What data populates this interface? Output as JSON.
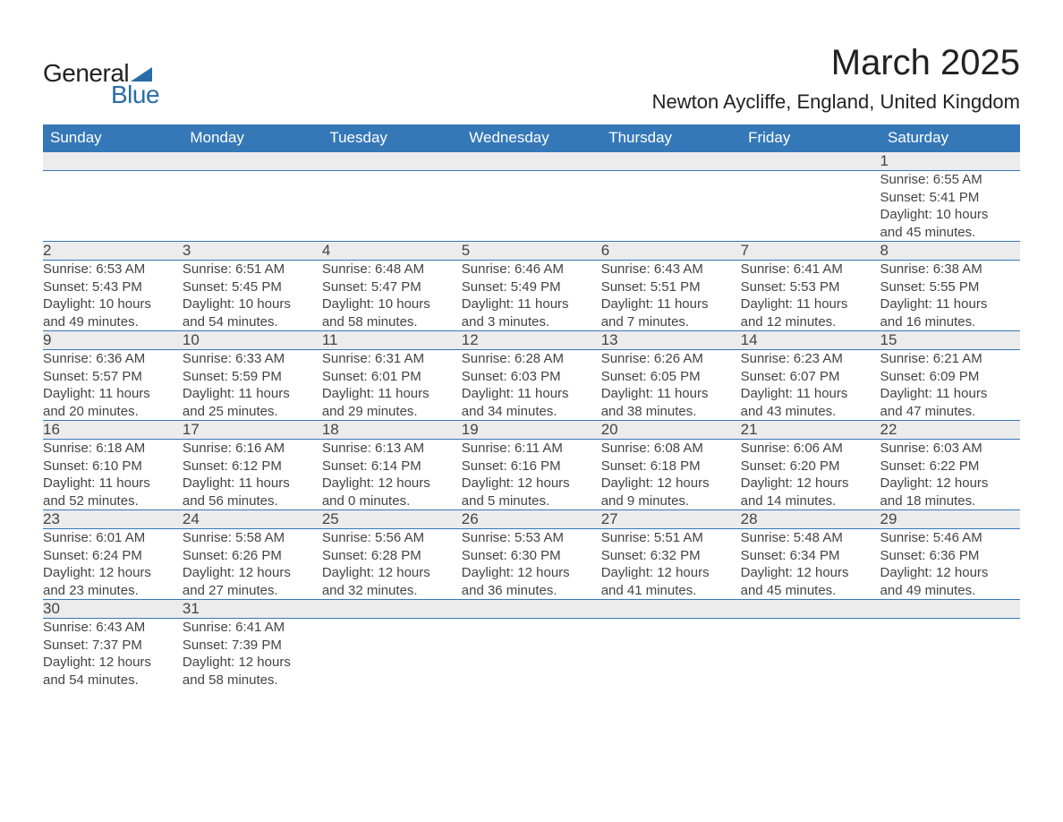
{
  "brand": {
    "part1": "General",
    "part2": "Blue"
  },
  "title": "March 2025",
  "location": "Newton Aycliffe, England, United Kingdom",
  "colors": {
    "header_bg": "#3578b8",
    "header_text": "#ffffff",
    "daynum_bg": "#ececec",
    "border": "#3578b8",
    "text": "#444444",
    "brand_blue": "#2a6ca8"
  },
  "day_headers": [
    "Sunday",
    "Monday",
    "Tuesday",
    "Wednesday",
    "Thursday",
    "Friday",
    "Saturday"
  ],
  "weeks": [
    [
      null,
      null,
      null,
      null,
      null,
      null,
      {
        "n": "1",
        "sr": "Sunrise: 6:55 AM",
        "ss": "Sunset: 5:41 PM",
        "d1": "Daylight: 10 hours",
        "d2": "and 45 minutes."
      }
    ],
    [
      {
        "n": "2",
        "sr": "Sunrise: 6:53 AM",
        "ss": "Sunset: 5:43 PM",
        "d1": "Daylight: 10 hours",
        "d2": "and 49 minutes."
      },
      {
        "n": "3",
        "sr": "Sunrise: 6:51 AM",
        "ss": "Sunset: 5:45 PM",
        "d1": "Daylight: 10 hours",
        "d2": "and 54 minutes."
      },
      {
        "n": "4",
        "sr": "Sunrise: 6:48 AM",
        "ss": "Sunset: 5:47 PM",
        "d1": "Daylight: 10 hours",
        "d2": "and 58 minutes."
      },
      {
        "n": "5",
        "sr": "Sunrise: 6:46 AM",
        "ss": "Sunset: 5:49 PM",
        "d1": "Daylight: 11 hours",
        "d2": "and 3 minutes."
      },
      {
        "n": "6",
        "sr": "Sunrise: 6:43 AM",
        "ss": "Sunset: 5:51 PM",
        "d1": "Daylight: 11 hours",
        "d2": "and 7 minutes."
      },
      {
        "n": "7",
        "sr": "Sunrise: 6:41 AM",
        "ss": "Sunset: 5:53 PM",
        "d1": "Daylight: 11 hours",
        "d2": "and 12 minutes."
      },
      {
        "n": "8",
        "sr": "Sunrise: 6:38 AM",
        "ss": "Sunset: 5:55 PM",
        "d1": "Daylight: 11 hours",
        "d2": "and 16 minutes."
      }
    ],
    [
      {
        "n": "9",
        "sr": "Sunrise: 6:36 AM",
        "ss": "Sunset: 5:57 PM",
        "d1": "Daylight: 11 hours",
        "d2": "and 20 minutes."
      },
      {
        "n": "10",
        "sr": "Sunrise: 6:33 AM",
        "ss": "Sunset: 5:59 PM",
        "d1": "Daylight: 11 hours",
        "d2": "and 25 minutes."
      },
      {
        "n": "11",
        "sr": "Sunrise: 6:31 AM",
        "ss": "Sunset: 6:01 PM",
        "d1": "Daylight: 11 hours",
        "d2": "and 29 minutes."
      },
      {
        "n": "12",
        "sr": "Sunrise: 6:28 AM",
        "ss": "Sunset: 6:03 PM",
        "d1": "Daylight: 11 hours",
        "d2": "and 34 minutes."
      },
      {
        "n": "13",
        "sr": "Sunrise: 6:26 AM",
        "ss": "Sunset: 6:05 PM",
        "d1": "Daylight: 11 hours",
        "d2": "and 38 minutes."
      },
      {
        "n": "14",
        "sr": "Sunrise: 6:23 AM",
        "ss": "Sunset: 6:07 PM",
        "d1": "Daylight: 11 hours",
        "d2": "and 43 minutes."
      },
      {
        "n": "15",
        "sr": "Sunrise: 6:21 AM",
        "ss": "Sunset: 6:09 PM",
        "d1": "Daylight: 11 hours",
        "d2": "and 47 minutes."
      }
    ],
    [
      {
        "n": "16",
        "sr": "Sunrise: 6:18 AM",
        "ss": "Sunset: 6:10 PM",
        "d1": "Daylight: 11 hours",
        "d2": "and 52 minutes."
      },
      {
        "n": "17",
        "sr": "Sunrise: 6:16 AM",
        "ss": "Sunset: 6:12 PM",
        "d1": "Daylight: 11 hours",
        "d2": "and 56 minutes."
      },
      {
        "n": "18",
        "sr": "Sunrise: 6:13 AM",
        "ss": "Sunset: 6:14 PM",
        "d1": "Daylight: 12 hours",
        "d2": "and 0 minutes."
      },
      {
        "n": "19",
        "sr": "Sunrise: 6:11 AM",
        "ss": "Sunset: 6:16 PM",
        "d1": "Daylight: 12 hours",
        "d2": "and 5 minutes."
      },
      {
        "n": "20",
        "sr": "Sunrise: 6:08 AM",
        "ss": "Sunset: 6:18 PM",
        "d1": "Daylight: 12 hours",
        "d2": "and 9 minutes."
      },
      {
        "n": "21",
        "sr": "Sunrise: 6:06 AM",
        "ss": "Sunset: 6:20 PM",
        "d1": "Daylight: 12 hours",
        "d2": "and 14 minutes."
      },
      {
        "n": "22",
        "sr": "Sunrise: 6:03 AM",
        "ss": "Sunset: 6:22 PM",
        "d1": "Daylight: 12 hours",
        "d2": "and 18 minutes."
      }
    ],
    [
      {
        "n": "23",
        "sr": "Sunrise: 6:01 AM",
        "ss": "Sunset: 6:24 PM",
        "d1": "Daylight: 12 hours",
        "d2": "and 23 minutes."
      },
      {
        "n": "24",
        "sr": "Sunrise: 5:58 AM",
        "ss": "Sunset: 6:26 PM",
        "d1": "Daylight: 12 hours",
        "d2": "and 27 minutes."
      },
      {
        "n": "25",
        "sr": "Sunrise: 5:56 AM",
        "ss": "Sunset: 6:28 PM",
        "d1": "Daylight: 12 hours",
        "d2": "and 32 minutes."
      },
      {
        "n": "26",
        "sr": "Sunrise: 5:53 AM",
        "ss": "Sunset: 6:30 PM",
        "d1": "Daylight: 12 hours",
        "d2": "and 36 minutes."
      },
      {
        "n": "27",
        "sr": "Sunrise: 5:51 AM",
        "ss": "Sunset: 6:32 PM",
        "d1": "Daylight: 12 hours",
        "d2": "and 41 minutes."
      },
      {
        "n": "28",
        "sr": "Sunrise: 5:48 AM",
        "ss": "Sunset: 6:34 PM",
        "d1": "Daylight: 12 hours",
        "d2": "and 45 minutes."
      },
      {
        "n": "29",
        "sr": "Sunrise: 5:46 AM",
        "ss": "Sunset: 6:36 PM",
        "d1": "Daylight: 12 hours",
        "d2": "and 49 minutes."
      }
    ],
    [
      {
        "n": "30",
        "sr": "Sunrise: 6:43 AM",
        "ss": "Sunset: 7:37 PM",
        "d1": "Daylight: 12 hours",
        "d2": "and 54 minutes."
      },
      {
        "n": "31",
        "sr": "Sunrise: 6:41 AM",
        "ss": "Sunset: 7:39 PM",
        "d1": "Daylight: 12 hours",
        "d2": "and 58 minutes."
      },
      null,
      null,
      null,
      null,
      null
    ]
  ]
}
